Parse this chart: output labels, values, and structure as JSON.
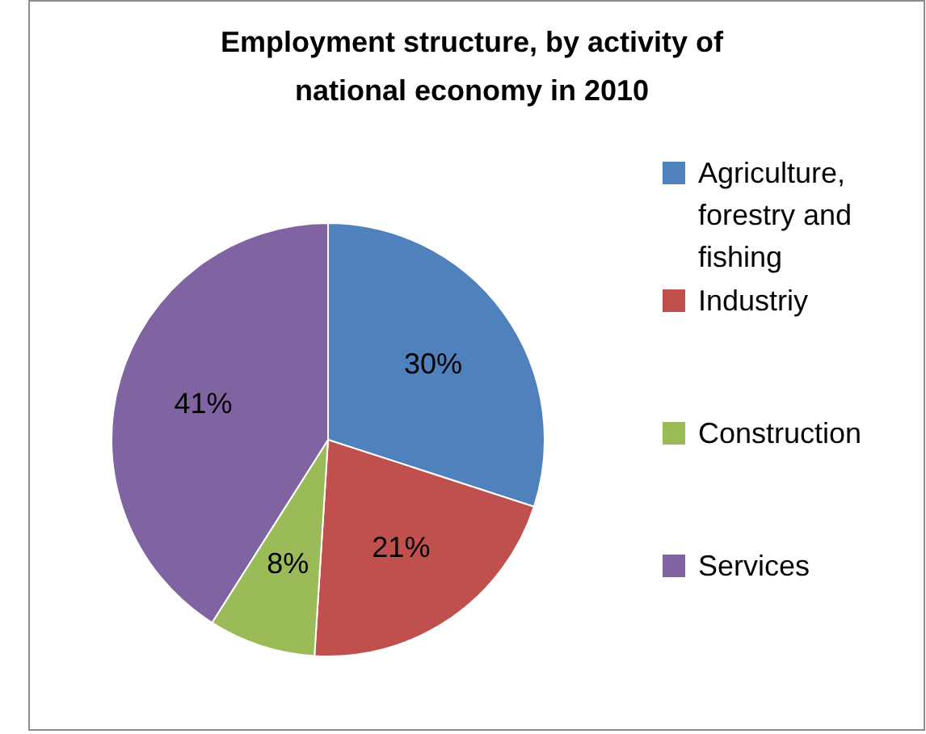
{
  "chart_data": {
    "type": "pie",
    "title": "Employment structure, by activity of national economy in 2010",
    "categories": [
      "Agriculture, forestry and fishing",
      "Industriy",
      "Construction",
      "Services"
    ],
    "values": [
      30,
      21,
      8,
      41
    ],
    "colors": [
      "#4f81bd",
      "#c0504d",
      "#9bbb59",
      "#8064a2"
    ],
    "value_labels": [
      "30%",
      "21%",
      "8%",
      "41%"
    ],
    "legend": "right"
  }
}
